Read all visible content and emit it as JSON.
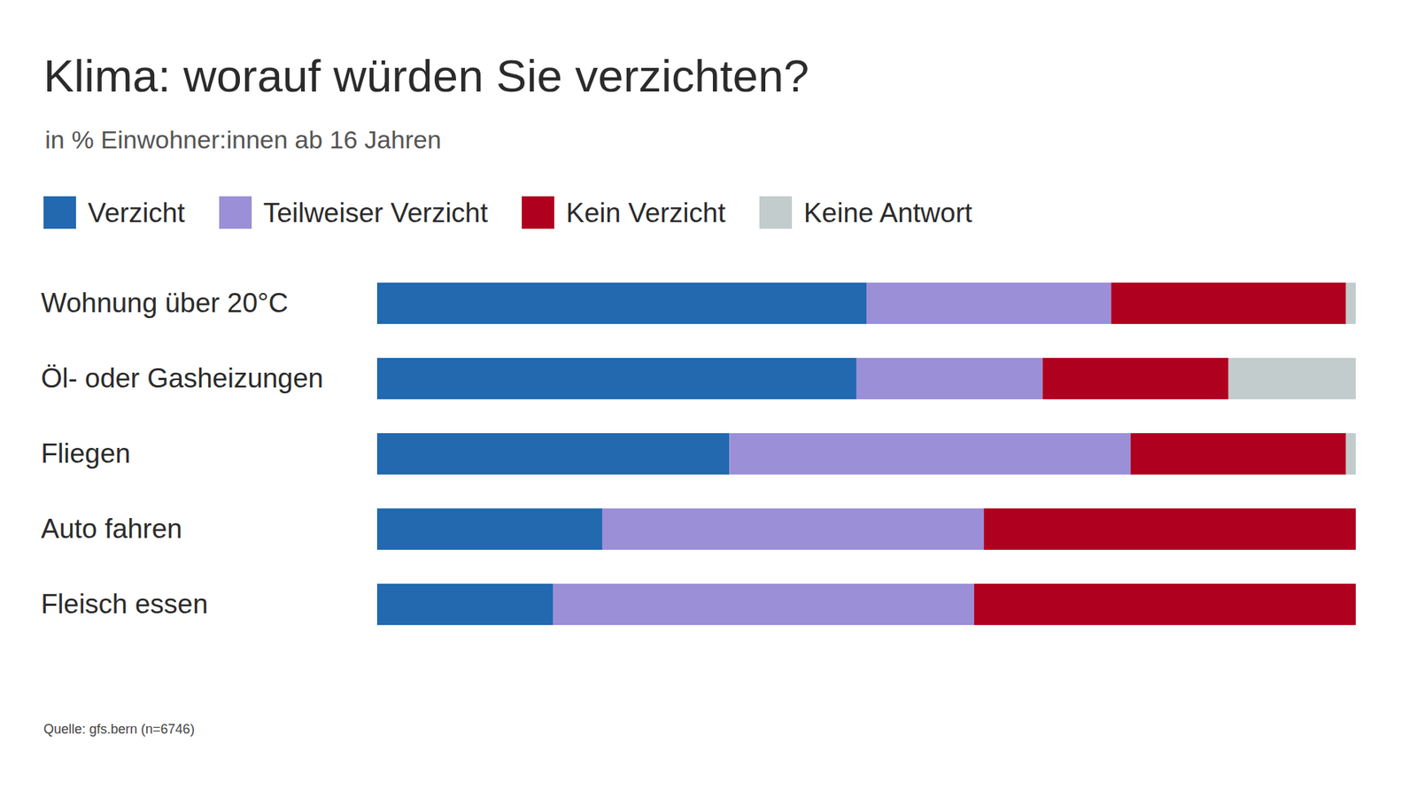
{
  "chart_data": {
    "type": "bar",
    "orientation": "horizontal",
    "stacked": true,
    "title": "Klima: worauf würden Sie verzichten?",
    "subtitle": "in % Einwohner:innen ab 16 Jahren",
    "source": "Quelle: gfs.bern (n=6746)",
    "categories": [
      "Wohnung über 20°C",
      "Öl- oder Gasheizungen",
      "Fliegen",
      "Auto fahren",
      "Fleisch essen"
    ],
    "series": [
      {
        "name": "Verzicht",
        "color": "#2269b0",
        "values": [
          50,
          49,
          36,
          23,
          18
        ]
      },
      {
        "name": "Teilweiser Verzicht",
        "color": "#9b8fd8",
        "values": [
          25,
          19,
          41,
          39,
          43
        ]
      },
      {
        "name": "Kein Verzicht",
        "color": "#b0001f",
        "values": [
          24,
          19,
          22,
          38,
          39
        ]
      },
      {
        "name": "Keine Antwort",
        "color": "#c2cccd",
        "values": [
          1,
          13,
          1,
          0,
          0
        ]
      }
    ],
    "xlim": [
      0,
      100
    ],
    "tick_labels": "y",
    "legend": "top-left"
  }
}
